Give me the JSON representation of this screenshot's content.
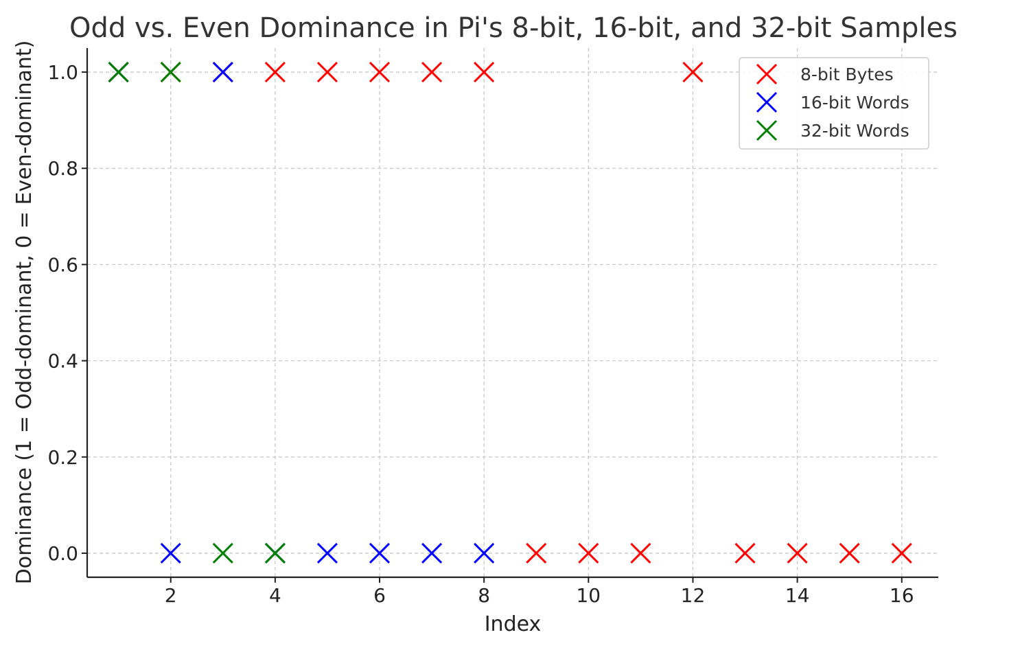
{
  "chart_data": {
    "type": "scatter",
    "title": "Odd vs. Even Dominance in Pi's 8-bit, 16-bit, and 32-bit Samples",
    "xlabel": "Index",
    "ylabel": "Dominance (1 = Odd-dominant, 0 = Even-dominant)",
    "xlim": [
      0.4,
      16.7
    ],
    "ylim": [
      -0.05,
      1.05
    ],
    "xticks": [
      2,
      4,
      6,
      8,
      10,
      12,
      14,
      16
    ],
    "yticks": [
      0.0,
      0.2,
      0.4,
      0.6,
      0.8,
      1.0
    ],
    "ytick_labels": [
      "0.0",
      "0.2",
      "0.4",
      "0.6",
      "0.8",
      "1.0"
    ],
    "grid": true,
    "legend_position": "top-right",
    "marker": "x",
    "series": [
      {
        "name": "8-bit Bytes",
        "color": "#ff0000",
        "x": [
          1,
          2,
          3,
          4,
          5,
          6,
          7,
          8,
          9,
          10,
          11,
          12,
          13,
          14,
          15,
          16
        ],
        "y": [
          1,
          1,
          1,
          1,
          1,
          1,
          1,
          1,
          0,
          0,
          0,
          1,
          0,
          0,
          0,
          0
        ]
      },
      {
        "name": "16-bit Words",
        "color": "#0000ff",
        "x": [
          1,
          2,
          3,
          4,
          5,
          6,
          7,
          8
        ],
        "y": [
          1,
          0,
          1,
          0,
          0,
          0,
          0,
          0
        ]
      },
      {
        "name": "32-bit Words",
        "color": "#008000",
        "x": [
          1,
          2,
          3,
          4
        ],
        "y": [
          1,
          1,
          0,
          0
        ]
      }
    ]
  }
}
